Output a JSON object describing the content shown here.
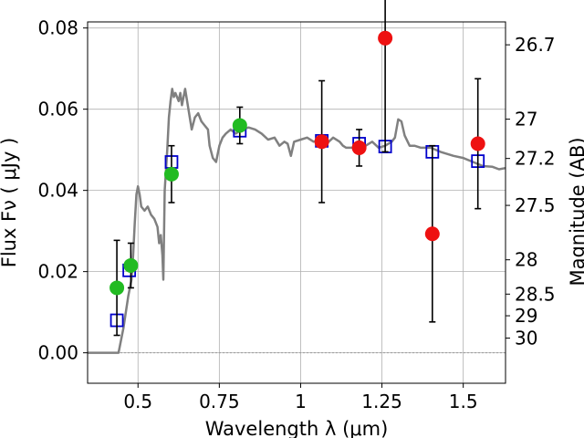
{
  "chart_data": {
    "type": "scatter",
    "xlabel": "Wavelength  λ (μm)",
    "ylabel": "Flux  Fν  ( μJy )",
    "ylabel_right": "Magnitude (AB)",
    "xlim": [
      0.345,
      1.63
    ],
    "ylim": [
      -0.0075,
      0.0815
    ],
    "grid": true,
    "x_ticks": [
      {
        "value": 0.5,
        "label": "0.5"
      },
      {
        "value": 0.75,
        "label": "0.75"
      },
      {
        "value": 1.0,
        "label": "1"
      },
      {
        "value": 1.25,
        "label": "1.25"
      },
      {
        "value": 1.5,
        "label": "1.5"
      }
    ],
    "y_ticks": [
      {
        "value": 0.0,
        "label": "0.00"
      },
      {
        "value": 0.02,
        "label": "0.02"
      },
      {
        "value": 0.04,
        "label": "0.04"
      },
      {
        "value": 0.06,
        "label": "0.06"
      },
      {
        "value": 0.08,
        "label": "0.08"
      }
    ],
    "right_ticks": [
      {
        "mag": 26.7,
        "label": "26.7"
      },
      {
        "mag": 27.0,
        "label": "27"
      },
      {
        "mag": 27.2,
        "label": "27.2"
      },
      {
        "mag": 27.5,
        "label": "27.5"
      },
      {
        "mag": 28.0,
        "label": "28"
      },
      {
        "mag": 28.5,
        "label": "28.5"
      },
      {
        "mag": 29.0,
        "label": "29"
      },
      {
        "mag": 30.0,
        "label": "30"
      }
    ],
    "series": [
      {
        "kind": "model_spectrum",
        "color": "#808080",
        "points": [
          [
            0.345,
            0.0
          ],
          [
            0.44,
            0.0
          ],
          [
            0.455,
            0.006
          ],
          [
            0.47,
            0.014
          ],
          [
            0.48,
            0.018
          ],
          [
            0.485,
            0.024
          ],
          [
            0.49,
            0.032
          ],
          [
            0.495,
            0.039
          ],
          [
            0.5,
            0.041
          ],
          [
            0.505,
            0.039
          ],
          [
            0.51,
            0.036
          ],
          [
            0.52,
            0.035
          ],
          [
            0.53,
            0.036
          ],
          [
            0.54,
            0.034
          ],
          [
            0.55,
            0.033
          ],
          [
            0.56,
            0.031
          ],
          [
            0.565,
            0.027
          ],
          [
            0.57,
            0.029
          ],
          [
            0.575,
            0.024
          ],
          [
            0.578,
            0.018
          ],
          [
            0.582,
            0.04
          ],
          [
            0.59,
            0.05
          ],
          [
            0.595,
            0.058
          ],
          [
            0.6,
            0.062
          ],
          [
            0.605,
            0.065
          ],
          [
            0.61,
            0.063
          ],
          [
            0.615,
            0.064
          ],
          [
            0.625,
            0.062
          ],
          [
            0.63,
            0.064
          ],
          [
            0.635,
            0.061
          ],
          [
            0.645,
            0.065
          ],
          [
            0.655,
            0.06
          ],
          [
            0.665,
            0.055
          ],
          [
            0.675,
            0.058
          ],
          [
            0.685,
            0.059
          ],
          [
            0.695,
            0.057
          ],
          [
            0.705,
            0.056
          ],
          [
            0.715,
            0.055
          ],
          [
            0.72,
            0.051
          ],
          [
            0.73,
            0.048
          ],
          [
            0.74,
            0.047
          ],
          [
            0.75,
            0.051
          ],
          [
            0.76,
            0.053
          ],
          [
            0.77,
            0.054
          ],
          [
            0.785,
            0.055
          ],
          [
            0.8,
            0.054
          ],
          [
            0.82,
            0.055
          ],
          [
            0.84,
            0.0555
          ],
          [
            0.86,
            0.055
          ],
          [
            0.88,
            0.054
          ],
          [
            0.9,
            0.0525
          ],
          [
            0.92,
            0.053
          ],
          [
            0.935,
            0.051
          ],
          [
            0.95,
            0.052
          ],
          [
            0.96,
            0.0515
          ],
          [
            0.97,
            0.0485
          ],
          [
            0.98,
            0.052
          ],
          [
            1.0,
            0.0525
          ],
          [
            1.02,
            0.053
          ],
          [
            1.04,
            0.052
          ],
          [
            1.06,
            0.0525
          ],
          [
            1.08,
            0.0515
          ],
          [
            1.1,
            0.053
          ],
          [
            1.12,
            0.052
          ],
          [
            1.13,
            0.051
          ],
          [
            1.14,
            0.0505
          ],
          [
            1.16,
            0.0505
          ],
          [
            1.18,
            0.0515
          ],
          [
            1.2,
            0.051
          ],
          [
            1.22,
            0.052
          ],
          [
            1.24,
            0.0505
          ],
          [
            1.26,
            0.051
          ],
          [
            1.28,
            0.052
          ],
          [
            1.29,
            0.053
          ],
          [
            1.3,
            0.0575
          ],
          [
            1.31,
            0.057
          ],
          [
            1.32,
            0.0535
          ],
          [
            1.335,
            0.051
          ],
          [
            1.35,
            0.051
          ],
          [
            1.37,
            0.0505
          ],
          [
            1.4,
            0.0505
          ],
          [
            1.43,
            0.0495
          ],
          [
            1.47,
            0.0485
          ],
          [
            1.5,
            0.048
          ],
          [
            1.53,
            0.047
          ],
          [
            1.56,
            0.046
          ],
          [
            1.59,
            0.0458
          ],
          [
            1.61,
            0.0452
          ],
          [
            1.63,
            0.0455
          ]
        ]
      },
      {
        "kind": "model_photometry",
        "marker": "open-square",
        "color": "#0000cc",
        "points": [
          [
            0.435,
            0.008
          ],
          [
            0.473,
            0.0203
          ],
          [
            0.603,
            0.047
          ],
          [
            0.813,
            0.0547
          ],
          [
            1.065,
            0.0522
          ],
          [
            1.18,
            0.0515
          ],
          [
            1.26,
            0.0508
          ],
          [
            1.405,
            0.0495
          ],
          [
            1.545,
            0.0472
          ]
        ]
      },
      {
        "kind": "observed",
        "marker": "filled-circle",
        "color": "#22bb22",
        "points": [
          {
            "x": 0.435,
            "y": 0.016,
            "err": 0.0117
          },
          {
            "x": 0.478,
            "y": 0.0215,
            "err": 0.0055
          },
          {
            "x": 0.603,
            "y": 0.044,
            "err": 0.007
          },
          {
            "x": 0.813,
            "y": 0.056,
            "err": 0.0045
          }
        ]
      },
      {
        "kind": "observed",
        "marker": "filled-circle",
        "color": "#ee1111",
        "points": [
          {
            "x": 1.065,
            "y": 0.052,
            "err": 0.015
          },
          {
            "x": 1.18,
            "y": 0.0505,
            "err": 0.0045
          },
          {
            "x": 1.26,
            "y": 0.0775,
            "err": 0.028
          },
          {
            "x": 1.405,
            "y": 0.0293,
            "err": 0.0217
          },
          {
            "x": 1.545,
            "y": 0.0515,
            "err": 0.016
          }
        ]
      }
    ]
  }
}
